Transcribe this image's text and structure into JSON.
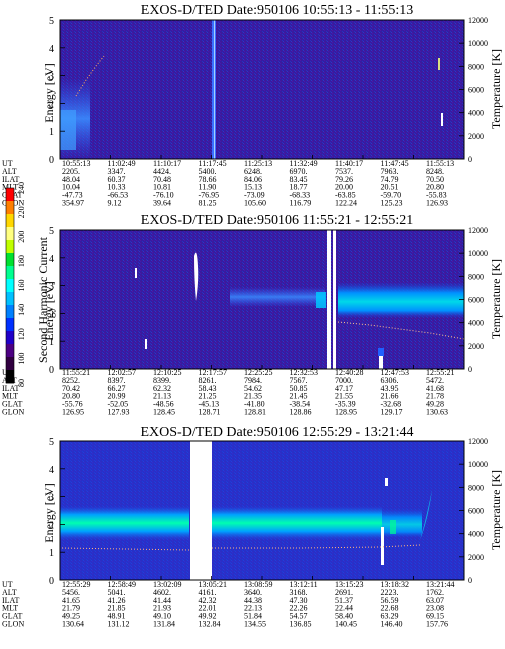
{
  "chart_data": [
    {
      "type": "heatmap",
      "title": "EXOS-D/TED   Date:950106  10:55:13 - 11:55:13",
      "ylabel_left": "Energy [eV]",
      "ylabel_right": "Temperature [K]",
      "ylim_left": [
        0,
        5
      ],
      "ylim_right": [
        0,
        12000
      ],
      "yticks_left": [
        "0",
        "1",
        "2",
        "3",
        "4",
        "5"
      ],
      "yticks_right": [
        "0",
        "2000",
        "4000",
        "6000",
        "8000",
        "10000",
        "12000"
      ],
      "table": {
        "labels": [
          "UT",
          "ALT",
          "ILAT",
          "MLT",
          "GLAT",
          "GLON"
        ],
        "columns": [
          [
            "10:55:13",
            "2205.",
            "48.04",
            "10.04",
            "-47.73",
            "354.97"
          ],
          [
            "11:02:49",
            "3347.",
            "60.37",
            "10.33",
            "-66.53",
            "9.12"
          ],
          [
            "11:10:17",
            "4424.",
            "70.48",
            "10.81",
            "-76.10",
            "39.64"
          ],
          [
            "11:17:45",
            "5400.",
            "78.66",
            "11.90",
            "-76.95",
            "81.25"
          ],
          [
            "11:25:13",
            "6248.",
            "84.06",
            "15.13",
            "-73.09",
            "105.60"
          ],
          [
            "11:32:49",
            "6970.",
            "83.45",
            "18.77",
            "-68.33",
            "116.79"
          ],
          [
            "11:40:17",
            "7537.",
            "79.26",
            "20.00",
            "-63.85",
            "122.24"
          ],
          [
            "11:47:45",
            "7963.",
            "74.79",
            "20.51",
            "-59.70",
            "125.23"
          ],
          [
            "11:55:13",
            "8248.",
            "70.50",
            "20.80",
            "-55.83",
            "126.93"
          ]
        ]
      }
    },
    {
      "type": "heatmap",
      "title": "EXOS-D/TED   Date:950106  11:55:21 - 12:55:21",
      "ylabel_left": "Energy [eV]",
      "ylabel_right": "Temperature [K]",
      "ylim_left": [
        0,
        5
      ],
      "ylim_right": [
        0,
        12000
      ],
      "yticks_left": [
        "0",
        "1",
        "2",
        "3",
        "4",
        "5"
      ],
      "yticks_right": [
        "0",
        "2000",
        "4000",
        "6000",
        "8000",
        "10000",
        "12000"
      ],
      "table": {
        "labels": [
          "UT",
          "ALT",
          "ILAT",
          "MLT",
          "GLAT",
          "GLON"
        ],
        "columns": [
          [
            "11:55:21",
            "8252.",
            "70.42",
            "20.80",
            "-55.76",
            "126.95"
          ],
          [
            "12:02:57",
            "8397.",
            "66.27",
            "20.99",
            "-52.05",
            "127.93"
          ],
          [
            "12:10:25",
            "8399.",
            "62.32",
            "21.13",
            "-48.56",
            "128.45"
          ],
          [
            "12:17:57",
            "8261.",
            "58.43",
            "21.25",
            "-45.13",
            "128.71"
          ],
          [
            "12:25:25",
            "7984.",
            "54.62",
            "21.35",
            "-41.80",
            "128.81"
          ],
          [
            "12:32:53",
            "7567.",
            "50.85",
            "21.45",
            "-38.54",
            "128.86"
          ],
          [
            "12:40:28",
            "7000.",
            "47.17",
            "21.55",
            "-35.39",
            "128.95"
          ],
          [
            "12:47:53",
            "6306.",
            "43.95",
            "21.66",
            "-32.68",
            "129.17"
          ],
          [
            "12:55:21",
            "5472.",
            "41.68",
            "21.78",
            "49.28",
            "130.63"
          ]
        ]
      }
    },
    {
      "type": "heatmap",
      "title": "EXOS-D/TED   Date:950106  12:55:29 - 13:21:44",
      "ylabel_left": "Energy [eV]",
      "ylabel_right": "Temperature [K]",
      "ylim_left": [
        0,
        5
      ],
      "ylim_right": [
        0,
        12000
      ],
      "yticks_left": [
        "0",
        "1",
        "2",
        "3",
        "4",
        "5"
      ],
      "yticks_right": [
        "0",
        "2000",
        "4000",
        "6000",
        "8000",
        "10000",
        "12000"
      ],
      "table": {
        "labels": [
          "UT",
          "ALT",
          "ILAT",
          "MLT",
          "GLAT",
          "GLON"
        ],
        "columns": [
          [
            "12:55:29",
            "5456.",
            "41.65",
            "21.79",
            "49.25",
            "130.64"
          ],
          [
            "12:58:49",
            "5041.",
            "41.26",
            "21.85",
            "48.91",
            "131.12"
          ],
          [
            "13:02:09",
            "4602.",
            "41.44",
            "21.93",
            "49.10",
            "131.84"
          ],
          [
            "13:05:21",
            "4161.",
            "42.32",
            "22.01",
            "49.92",
            "132.84"
          ],
          [
            "13:08:59",
            "3640.",
            "44.38",
            "22.13",
            "51.84",
            "134.55"
          ],
          [
            "13:12:11",
            "3168.",
            "47.30",
            "22.26",
            "54.57",
            "136.85"
          ],
          [
            "13:15:23",
            "2691.",
            "51.37",
            "22.44",
            "58.40",
            "140.45"
          ],
          [
            "13:18:32",
            "2223.",
            "56.59",
            "22.68",
            "63.29",
            "146.40"
          ],
          [
            "13:21:44",
            "1762.",
            "63.07",
            "23.08",
            "69.15",
            "157.76"
          ]
        ]
      }
    }
  ],
  "colorbar": {
    "label": "Second Harmonic Current",
    "ticks": [
      "80",
      "100",
      "120",
      "140",
      "160",
      "180",
      "200",
      "220",
      "240"
    ],
    "colors": [
      "#ff0000",
      "#ff7f00",
      "#ffd700",
      "#ffff80",
      "#c0ff00",
      "#00e030",
      "#00ff90",
      "#00ffff",
      "#00c0ff",
      "#0080ff",
      "#0030ff",
      "#2000c8",
      "#4c0082",
      "#300040",
      "#000000"
    ]
  }
}
